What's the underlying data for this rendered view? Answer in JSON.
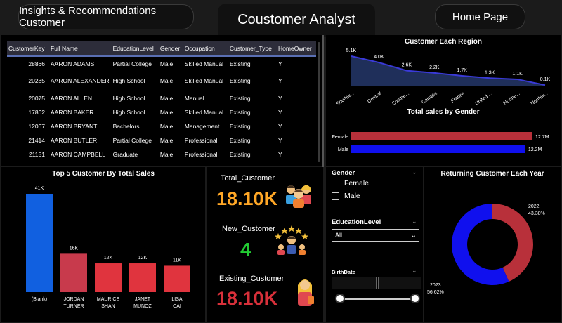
{
  "nav": {
    "insights_label": "Insights & Recommendations Customer",
    "title": "Coustomer Analyst",
    "home_label": "Home Page"
  },
  "table": {
    "columns": [
      "CustomerKey",
      "Full Name",
      "EducationLevel",
      "Gender",
      "Occupation",
      "Customer_Type",
      "HomeOwner"
    ],
    "rows": [
      [
        "28866",
        "AARON ADAMS",
        "Partial College",
        "Male",
        "Skilled Manual",
        "Existing",
        "Y"
      ],
      [
        "20285",
        "AARON ALEXANDER",
        "High School",
        "Male",
        "Skilled Manual",
        "Existing",
        "Y"
      ],
      [
        "20075",
        "AARON ALLEN",
        "High School",
        "Male",
        "Manual",
        "Existing",
        "Y"
      ],
      [
        "17862",
        "AARON BAKER",
        "High School",
        "Male",
        "Skilled Manual",
        "Existing",
        "Y"
      ],
      [
        "12067",
        "AARON BRYANT",
        "Bachelors",
        "Male",
        "Management",
        "Existing",
        "Y"
      ],
      [
        "21414",
        "AARON BUTLER",
        "Partial College",
        "Male",
        "Professional",
        "Existing",
        "Y"
      ],
      [
        "21151",
        "AARON CAMPBELL",
        "Graduate",
        "Male",
        "Professional",
        "Existing",
        "Y"
      ]
    ]
  },
  "region_chart": {
    "title": "Customer Each Region",
    "categories": [
      "Southw...",
      "Central",
      "Southe...",
      "Canada",
      "France",
      "United ...",
      "Northe...",
      "Northw..."
    ],
    "values": [
      5.1,
      4.0,
      2.6,
      2.2,
      1.7,
      1.3,
      1.1,
      0.1
    ],
    "labels": [
      "5.1K",
      "4.0K",
      "2.6K",
      "2.2K",
      "1.7K",
      "1.3K",
      "1.1K",
      "0.1K"
    ],
    "color": "#3a3ad8"
  },
  "gender_sales": {
    "title": "Total sales by Gender",
    "rows": [
      {
        "label": "Female",
        "value": 12.7,
        "text": "12.7M",
        "color": "#b8303a"
      },
      {
        "label": "Male",
        "value": 12.2,
        "text": "12.2M",
        "color": "#1010ee"
      }
    ]
  },
  "top5": {
    "title": "Top 5 Customer By Total Sales",
    "categories": [
      "(Blank)",
      "JORDAN TURNER",
      "MAURICE SHAN",
      "JANET MUNOZ",
      "LISA CAI"
    ],
    "values": [
      41,
      16,
      12,
      12,
      11
    ],
    "labels": [
      "41K",
      "16K",
      "12K",
      "12K",
      "11K"
    ],
    "colors": [
      "#1160e0",
      "#c83a4c",
      "#e0343e",
      "#e0343e",
      "#e0343e"
    ]
  },
  "kpi": {
    "total_label": "Total_Customer",
    "total_value": "18.10K",
    "total_color": "#ffa726",
    "new_label": "New_Customer",
    "new_value": "4",
    "new_color": "#22cc33",
    "existing_label": "Existing_Customer",
    "existing_value": "18.10K",
    "existing_color": "#d8303a"
  },
  "slicers": {
    "gender_title": "Gender",
    "gender_options": [
      "Female",
      "Male"
    ],
    "education_title": "EducationLevel",
    "education_value": "All",
    "birthdate_title": "BirthDate"
  },
  "donut": {
    "title": "Returning Customer Each Year",
    "segments": [
      {
        "label": "2022",
        "pct": "43.38%",
        "value": 43.38,
        "color": "#b8303a"
      },
      {
        "label": "2023",
        "pct": "56.62%",
        "value": 56.62,
        "color": "#1010ee"
      }
    ]
  },
  "chart_data": [
    {
      "type": "area",
      "title": "Customer Each Region",
      "categories": [
        "Southw...",
        "Central",
        "Southe...",
        "Canada",
        "France",
        "United ...",
        "Northe...",
        "Northw..."
      ],
      "series": [
        {
          "values": [
            5.1,
            4.0,
            2.6,
            2.2,
            1.7,
            1.3,
            1.1,
            0.1
          ]
        }
      ]
    },
    {
      "type": "bar",
      "title": "Total sales by Gender",
      "categories": [
        "Female",
        "Male"
      ],
      "values": [
        12.7,
        12.2
      ]
    },
    {
      "type": "bar",
      "title": "Top 5 Customer By Total Sales",
      "categories": [
        "(Blank)",
        "JORDAN TURNER",
        "MAURICE SHAN",
        "JANET MUNOZ",
        "LISA CAI"
      ],
      "values": [
        41,
        16,
        12,
        12,
        11
      ]
    },
    {
      "type": "pie",
      "title": "Returning Customer Each Year",
      "categories": [
        "2022",
        "2023"
      ],
      "values": [
        43.38,
        56.62
      ]
    }
  ]
}
